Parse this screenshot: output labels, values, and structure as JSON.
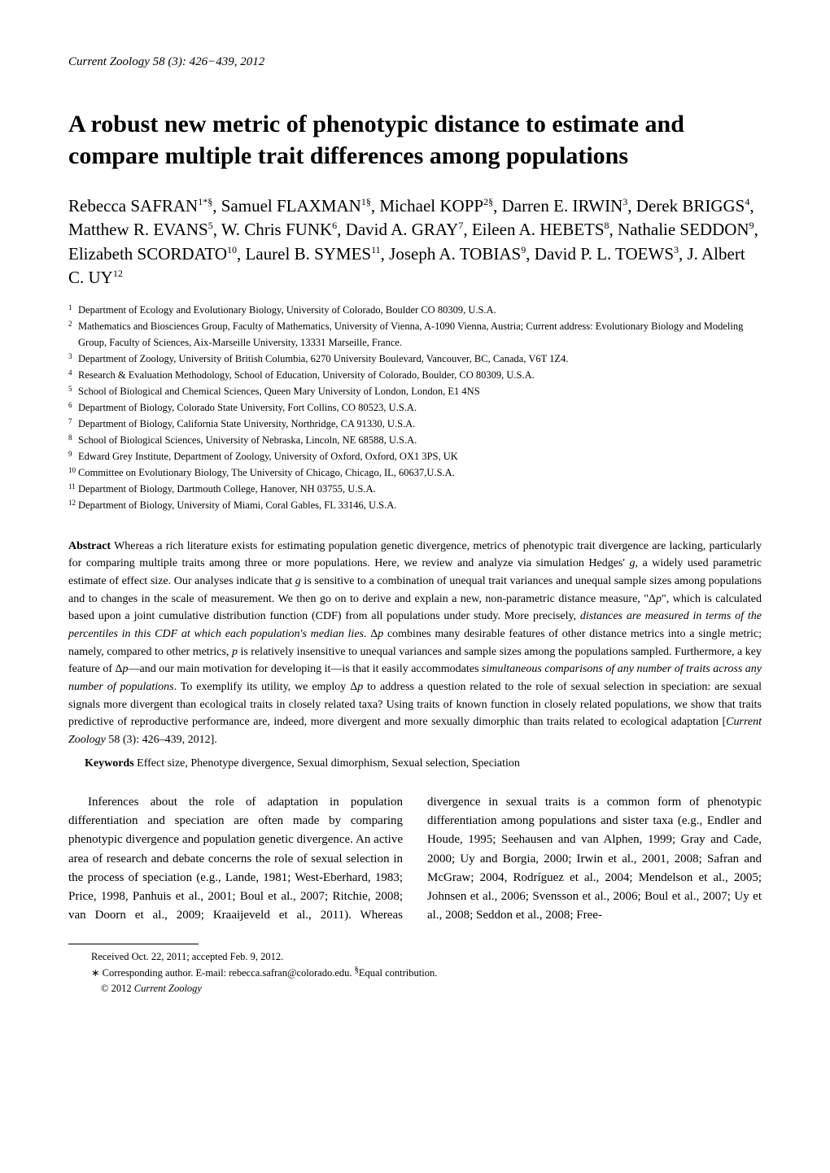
{
  "header": {
    "journal": "Current Zoology",
    "citation": "  58 (3): 426−439, 2012"
  },
  "title": "A robust new metric of phenotypic distance to estimate and compare multiple trait differences among populations",
  "authors_html": "Rebecca SAFRAN<sup>1*§</sup>, Samuel FLAXMAN<sup>1§</sup>, Michael KOPP<sup>2§</sup>, Darren E. IRWIN<sup>3</sup>, Derek BRIGGS<sup>4</sup>, Matthew R. EVANS<sup>5</sup>, W. Chris FUNK<sup>6</sup>, David A. GRAY<sup>7</sup>, Eileen A. HEBETS<sup>8</sup>, Nathalie SEDDON<sup>9</sup>, Elizabeth SCORDATO<sup>10</sup>, Laurel B. SYMES<sup>11</sup>, Joseph A. TOBIAS<sup>9</sup>, David P. L. TOEWS<sup>3</sup>, J. Albert C. UY<sup>12</sup>",
  "affiliations": [
    {
      "n": "1",
      "text": "Department of Ecology and Evolutionary Biology, University of Colorado, Boulder CO 80309, U.S.A."
    },
    {
      "n": "2",
      "text": "Mathematics and Biosciences Group, Faculty of Mathematics, University of Vienna, A-1090 Vienna, Austria; Current address: Evolutionary Biology and Modeling Group, Faculty of Sciences, Aix-Marseille University, 13331 Marseille, France."
    },
    {
      "n": "3",
      "text": "Department of Zoology, University of British Columbia, 6270 University Boulevard, Vancouver, BC, Canada, V6T 1Z4."
    },
    {
      "n": "4",
      "text": "Research & Evaluation Methodology, School of Education, University of Colorado, Boulder, CO 80309, U.S.A."
    },
    {
      "n": "5",
      "text": "School of Biological and Chemical Sciences, Queen Mary University of London, London, E1 4NS"
    },
    {
      "n": "6",
      "text": "Department of Biology, Colorado State University, Fort Collins, CO 80523, U.S.A."
    },
    {
      "n": "7",
      "text": "Department of Biology, California State University, Northridge, CA 91330, U.S.A."
    },
    {
      "n": "8",
      "text": "School of Biological Sciences, University of Nebraska, Lincoln, NE 68588, U.S.A."
    },
    {
      "n": "9",
      "text": "Edward Grey Institute, Department of Zoology, University of Oxford, Oxford, OX1 3PS, UK"
    },
    {
      "n": "10",
      "text": "Committee on Evolutionary Biology, The University of Chicago, Chicago, IL, 60637,U.S.A."
    },
    {
      "n": "11",
      "text": "Department of Biology, Dartmouth College, Hanover, NH 03755, U.S.A."
    },
    {
      "n": "12",
      "text": "Department of Biology, University of Miami, Coral Gables, FL 33146, U.S.A."
    }
  ],
  "abstract": {
    "label": "Abstract",
    "text_html": "   Whereas a rich literature exists for estimating population genetic divergence, metrics of phenotypic trait divergence are lacking, particularly for comparing multiple traits among three or more populations. Here, we review and analyze via simulation Hedges' <span class='italic'>g</span>, a widely used parametric estimate of effect size. Our analyses indicate that <span class='italic'>g</span> is sensitive to a combination of unequal trait variances and unequal sample sizes among populations and to changes in the scale of measurement. We then go on to derive and explain a new, non-parametric distance measure, \"Δ<span class='italic'>p</span>\", which is calculated based upon a joint cumulative distribution function (CDF) from all populations under study. More precisely, <span class='italic'>distances are measured in terms of the percentiles in this CDF at which each population's median lies</span>. Δ<span class='italic'>p</span> combines many desirable features of other distance metrics into a single metric; namely, compared to other metrics, <span class='italic'>p</span> is relatively insensitive to unequal variances and sample sizes among the populations sampled. Furthermore, a key feature of Δ<span class='italic'>p</span>—and our main motivation for developing it—is that it easily accommodates <span class='italic'>simultaneous comparisons of any number of traits across any number of populations</span>. To exemplify its utility, we employ Δ<span class='italic'>p</span> to address a question related to the role of sexual selection in speciation: are sexual signals more divergent than ecological traits in closely related taxa? Using traits of known function in closely related populations, we show that traits predictive of reproductive performance are, indeed, more divergent and more sexually dimorphic than traits related to ecological adaptation [<span class='italic'>Current Zoology</span> 58 (3): 426–439, 2012]."
  },
  "keywords": {
    "label": "Keywords",
    "text": "   Effect size, Phenotype divergence, Sexual dimorphism, Sexual selection, Speciation"
  },
  "body": {
    "col1": "Inferences about the role of adaptation in population differentiation and speciation are often made by comparing phenotypic divergence and population genetic divergence. An active area of research and debate concerns the role of sexual selection in the process of speciation (e.g., Lande, 1981; West-Eberhard, 1983; Price, 1998, Panhuis et al., 2001; Boul et al., 2007; Ritchie, 2008; van Doorn et al., 2009; Kraaijeveld et al.,",
    "col2": "2011). Whereas divergence in sexual traits is a common form of phenotypic differentiation among populations and sister taxa (e.g., Endler and Houde, 1995; Seehausen and van Alphen, 1999; Gray and Cade, 2000; Uy and Borgia, 2000; Irwin et al., 2001, 2008; Safran and McGraw; 2004, Rodríguez et al., 2004; Mendelson et al., 2005; Johnsen et al., 2006; Svensson et al., 2006; Boul et al., 2007; Uy et al., 2008; Seddon et al., 2008; Free-"
  },
  "footnotes": {
    "received": "Received Oct. 22, 2011; accepted Feb. 9, 2012.",
    "corresponding_html": "<span class='sym'>∗</span> Corresponding author. E-mail: rebecca.safran@colorado.edu.   <sup>§</sup>Equal contribution.",
    "copyright_html": "© 2012 <span class='italic'>Current Zoology</span>"
  }
}
